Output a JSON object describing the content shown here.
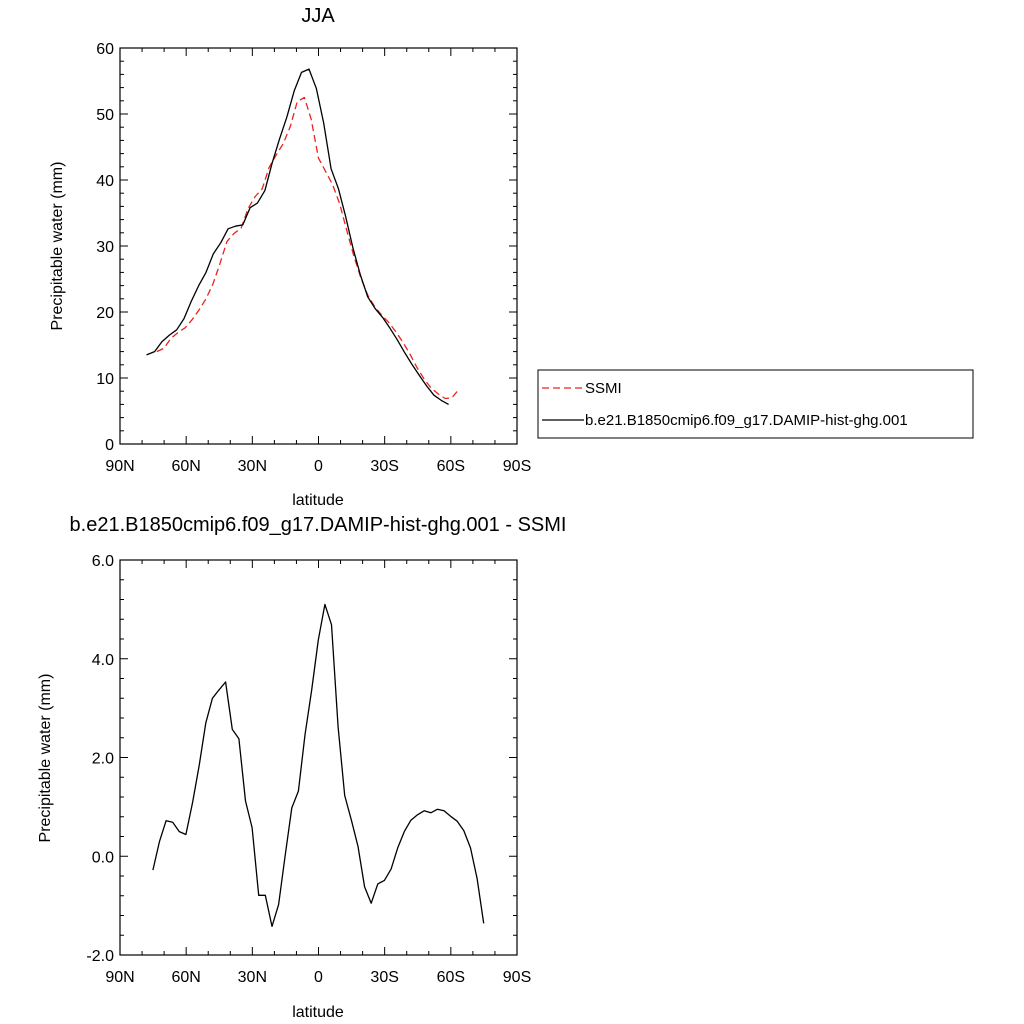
{
  "chart_data": [
    {
      "type": "line",
      "title": "JJA",
      "xlabel": "latitude",
      "ylabel": "Precipitable water (mm)",
      "xlim": [
        90,
        -90
      ],
      "ylim": [
        0,
        60
      ],
      "x_ticks": [
        90,
        60,
        30,
        0,
        -30,
        -60,
        -90
      ],
      "x_tick_labels": [
        "90N",
        "60N",
        "30N",
        "0",
        "30S",
        "60S",
        "90S"
      ],
      "y_ticks": [
        0,
        10,
        20,
        30,
        40,
        50,
        60
      ],
      "y_tick_labels": [
        "0",
        "10",
        "20",
        "30",
        "40",
        "50",
        "60"
      ],
      "grid": false,
      "legend_position": "right",
      "legend": [
        "SSMI",
        "b.e21.B1850cmip6.f09_g17.DAMIP-hist-ghg.001"
      ],
      "series": [
        {
          "name": "SSMI",
          "color": "#e8241f",
          "style": "dashed",
          "points": [
            [
              73.3,
              14.0
            ],
            [
              70.1,
              14.5
            ],
            [
              66.9,
              16.0
            ],
            [
              63.7,
              16.9
            ],
            [
              60.5,
              17.6
            ],
            [
              57.4,
              18.8
            ],
            [
              54.2,
              20.3
            ],
            [
              51.0,
              22.0
            ],
            [
              47.8,
              24.3
            ],
            [
              44.6,
              27.4
            ],
            [
              41.5,
              30.7
            ],
            [
              38.3,
              31.9
            ],
            [
              35.1,
              32.7
            ],
            [
              31.9,
              35.7
            ],
            [
              28.7,
              37.5
            ],
            [
              25.5,
              38.7
            ],
            [
              22.4,
              41.9
            ],
            [
              19.2,
              43.8
            ],
            [
              16.0,
              45.5
            ],
            [
              12.8,
              48.1
            ],
            [
              9.6,
              51.9
            ],
            [
              6.4,
              52.5
            ],
            [
              3.3,
              49.2
            ],
            [
              0.0,
              43.3
            ],
            [
              -3.2,
              41.3
            ],
            [
              -6.4,
              39.3
            ],
            [
              -9.6,
              36.4
            ],
            [
              -12.8,
              32.4
            ],
            [
              -16.0,
              28.5
            ],
            [
              -19.2,
              25.2
            ],
            [
              -22.4,
              22.5
            ],
            [
              -25.5,
              20.8
            ],
            [
              -28.7,
              19.5
            ],
            [
              -31.9,
              18.4
            ],
            [
              -35.1,
              17.0
            ],
            [
              -38.3,
              15.4
            ],
            [
              -41.5,
              13.6
            ],
            [
              -44.6,
              11.6
            ],
            [
              -47.8,
              9.9
            ],
            [
              -51.0,
              8.5
            ],
            [
              -54.2,
              7.6
            ],
            [
              -57.4,
              6.9
            ],
            [
              -60.5,
              7.0
            ],
            [
              -63.7,
              8.3
            ]
          ]
        },
        {
          "name": "b.e21.B1850cmip6.f09_g17.DAMIP-hist-ghg.001",
          "color": "#000000",
          "style": "solid",
          "points": [
            [
              78.0,
              13.5
            ],
            [
              74.3,
              14.0
            ],
            [
              71.0,
              15.5
            ],
            [
              67.6,
              16.5
            ],
            [
              64.3,
              17.3
            ],
            [
              61.0,
              19.0
            ],
            [
              57.6,
              21.7
            ],
            [
              54.3,
              24.0
            ],
            [
              51.0,
              26.0
            ],
            [
              47.7,
              28.8
            ],
            [
              44.3,
              30.5
            ],
            [
              41.0,
              32.6
            ],
            [
              37.7,
              33.0
            ],
            [
              34.3,
              33.2
            ],
            [
              31.0,
              35.8
            ],
            [
              27.7,
              36.5
            ],
            [
              24.3,
              38.4
            ],
            [
              21.0,
              42.6
            ],
            [
              17.7,
              46.2
            ],
            [
              14.3,
              49.6
            ],
            [
              11.0,
              53.5
            ],
            [
              7.7,
              56.3
            ],
            [
              4.3,
              56.8
            ],
            [
              1.0,
              53.9
            ],
            [
              -2.3,
              48.7
            ],
            [
              -5.7,
              41.7
            ],
            [
              -9.0,
              38.7
            ],
            [
              -12.3,
              34.5
            ],
            [
              -15.7,
              29.6
            ],
            [
              -19.0,
              25.6
            ],
            [
              -22.3,
              22.3
            ],
            [
              -25.7,
              20.5
            ],
            [
              -29.0,
              19.2
            ],
            [
              -32.3,
              17.6
            ],
            [
              -35.7,
              15.8
            ],
            [
              -39.0,
              13.9
            ],
            [
              -42.3,
              12.1
            ],
            [
              -45.7,
              10.4
            ],
            [
              -49.0,
              8.8
            ],
            [
              -52.3,
              7.4
            ],
            [
              -55.7,
              6.6
            ],
            [
              -59.0,
              6.0
            ]
          ]
        }
      ]
    },
    {
      "type": "line",
      "title": "b.e21.B1850cmip6.f09_g17.DAMIP-hist-ghg.001 - SSMI",
      "xlabel": "latitude",
      "ylabel": "Precipitable water (mm)",
      "xlim": [
        90,
        -90
      ],
      "ylim": [
        -2.0,
        6.0
      ],
      "x_ticks": [
        90,
        60,
        30,
        0,
        -30,
        -60,
        -90
      ],
      "x_tick_labels": [
        "90N",
        "60N",
        "30N",
        "0",
        "30S",
        "60S",
        "90S"
      ],
      "y_ticks": [
        -2.0,
        0.0,
        2.0,
        4.0,
        6.0
      ],
      "y_tick_labels": [
        "-2.0",
        "0.0",
        "2.0",
        "4.0",
        "6.0"
      ],
      "grid": false,
      "series": [
        {
          "color": "#000000",
          "style": "solid",
          "points": [
            [
              75.1,
              -0.28
            ],
            [
              72.1,
              0.3
            ],
            [
              69.1,
              0.72
            ],
            [
              66.1,
              0.69
            ],
            [
              63.1,
              0.5
            ],
            [
              60.1,
              0.44
            ],
            [
              57.1,
              1.09
            ],
            [
              54.1,
              1.84
            ],
            [
              51.1,
              2.7
            ],
            [
              48.1,
              3.2
            ],
            [
              45.1,
              3.37
            ],
            [
              42.1,
              3.53
            ],
            [
              39.1,
              2.57
            ],
            [
              36.1,
              2.38
            ],
            [
              33.1,
              1.12
            ],
            [
              30.1,
              0.58
            ],
            [
              27.1,
              -0.79
            ],
            [
              24.1,
              -0.79
            ],
            [
              21.1,
              -1.42
            ],
            [
              18.1,
              -0.98
            ],
            [
              15.1,
              0.02
            ],
            [
              12.1,
              0.98
            ],
            [
              9.1,
              1.32
            ],
            [
              6.1,
              2.46
            ],
            [
              3.1,
              3.37
            ],
            [
              0.1,
              4.38
            ],
            [
              -2.9,
              5.1
            ],
            [
              -5.9,
              4.69
            ],
            [
              -8.9,
              2.62
            ],
            [
              -11.9,
              1.23
            ],
            [
              -14.9,
              0.73
            ],
            [
              -17.9,
              0.2
            ],
            [
              -20.9,
              -0.62
            ],
            [
              -23.9,
              -0.95
            ],
            [
              -26.9,
              -0.56
            ],
            [
              -29.9,
              -0.49
            ],
            [
              -32.9,
              -0.26
            ],
            [
              -35.9,
              0.17
            ],
            [
              -38.9,
              0.5
            ],
            [
              -41.9,
              0.73
            ],
            [
              -44.9,
              0.84
            ],
            [
              -47.9,
              0.92
            ],
            [
              -50.9,
              0.88
            ],
            [
              -53.9,
              0.95
            ],
            [
              -56.9,
              0.92
            ],
            [
              -59.9,
              0.81
            ],
            [
              -62.9,
              0.71
            ],
            [
              -65.9,
              0.52
            ],
            [
              -68.9,
              0.17
            ],
            [
              -71.9,
              -0.45
            ],
            [
              -74.9,
              -1.36
            ]
          ]
        }
      ]
    }
  ]
}
